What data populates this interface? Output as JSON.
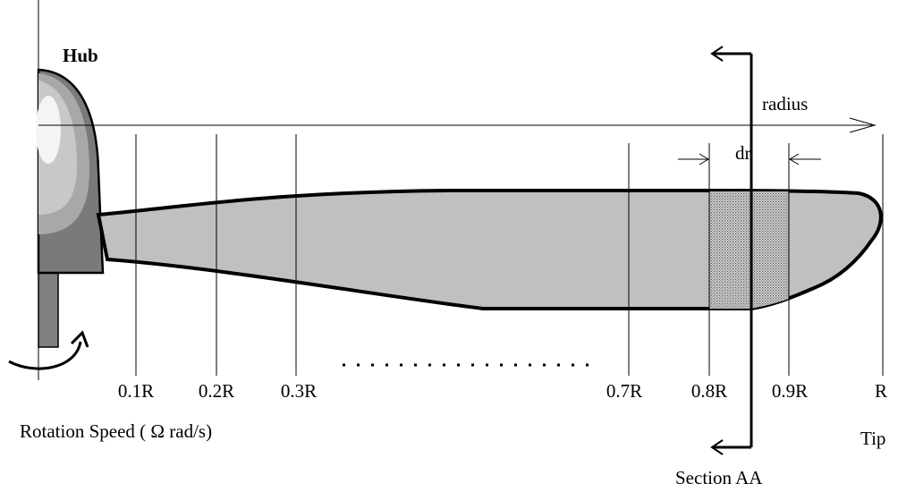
{
  "labels": {
    "hub": "Hub",
    "radius": "radius",
    "dr": "dr",
    "rotation": "Rotation Speed ( Ω rad/s)",
    "tip": "Tip",
    "section": "Section AA"
  },
  "stations": [
    "0.1R",
    "0.2R",
    "0.3R",
    "0.7R",
    "0.8R",
    "0.9R",
    "R"
  ]
}
